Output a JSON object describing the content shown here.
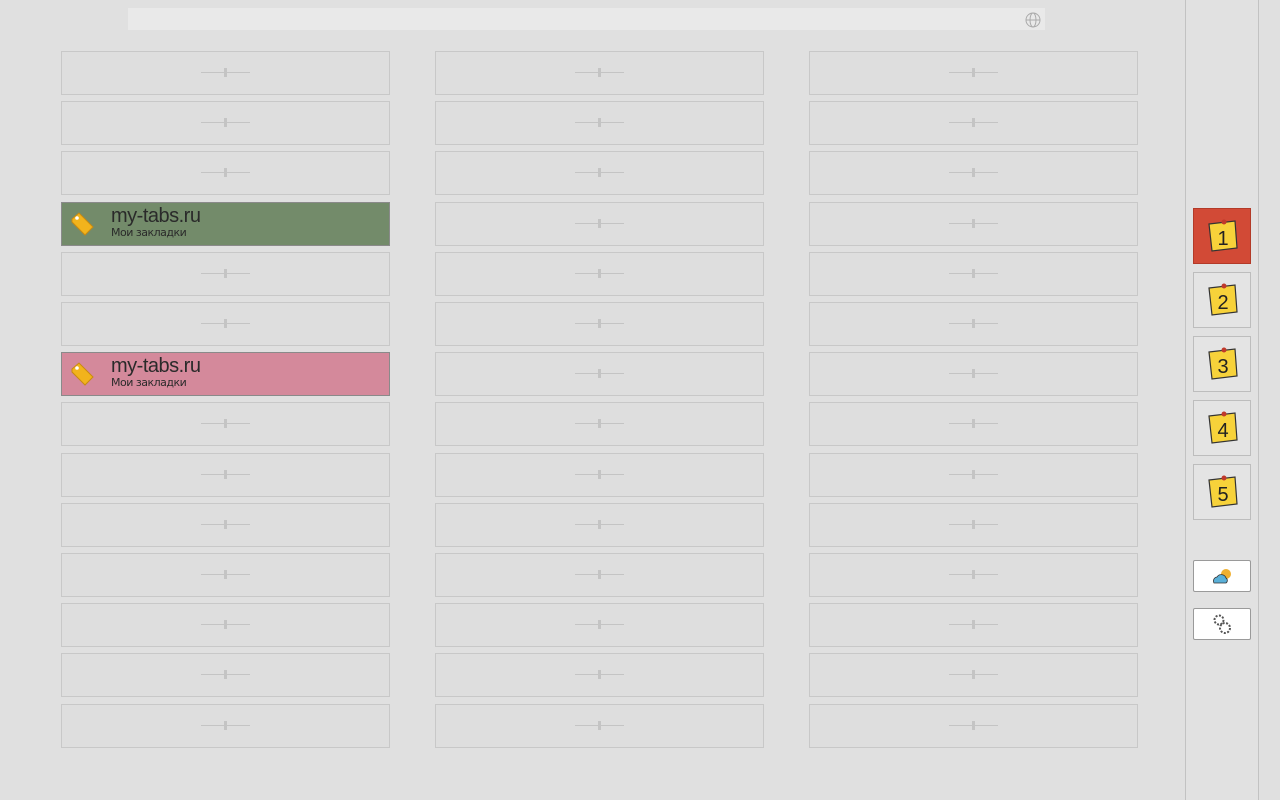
{
  "bookmarks": [
    {
      "title": "my-tabs.ru",
      "subtitle": "Мои закладки",
      "color": "#738b6a"
    },
    {
      "title": "my-tabs.ru",
      "subtitle": "Мои закладки",
      "color": "#d4899b"
    }
  ],
  "pages": [
    {
      "label": "1",
      "active": true
    },
    {
      "label": "2",
      "active": false
    },
    {
      "label": "3",
      "active": false
    },
    {
      "label": "4",
      "active": false
    },
    {
      "label": "5",
      "active": false
    }
  ]
}
